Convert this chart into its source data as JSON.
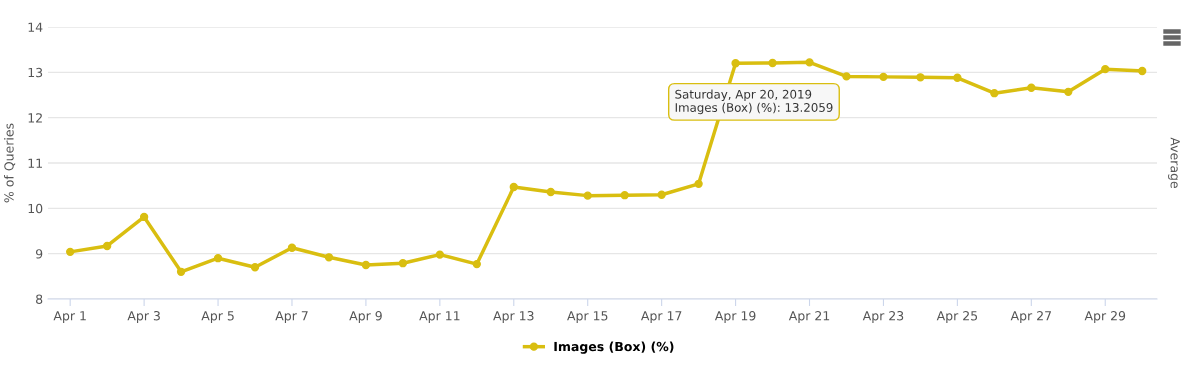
{
  "chart_data": {
    "type": "line",
    "ylabel": "% of Queries",
    "y2label": "Average",
    "categories": [
      "Apr 1",
      null,
      "Apr 3",
      null,
      "Apr 5",
      null,
      "Apr 7",
      null,
      "Apr 9",
      null,
      "Apr 11",
      null,
      "Apr 13",
      null,
      "Apr 15",
      null,
      "Apr 17",
      null,
      "Apr 19",
      null,
      "Apr 21",
      null,
      "Apr 23",
      null,
      "Apr 25",
      null,
      "Apr 27",
      null,
      "Apr 29",
      null
    ],
    "series": [
      {
        "name": "Images (Box) (%)",
        "color": "#d9be10",
        "values": [
          9.04,
          9.17,
          9.81,
          8.6,
          8.9,
          8.7,
          9.13,
          8.92,
          8.75,
          8.79,
          8.98,
          8.77,
          10.47,
          10.36,
          10.28,
          10.29,
          10.3,
          10.54,
          13.2,
          13.2059,
          13.22,
          12.91,
          12.9,
          12.89,
          12.88,
          12.54,
          12.66,
          12.57,
          13.07,
          13.03
        ]
      }
    ],
    "ylim": [
      8,
      14
    ],
    "yticks": [
      8,
      9,
      10,
      11,
      12,
      13,
      14
    ],
    "grid": "y",
    "legend": "bottom",
    "marker": "circle",
    "line_style": "solid",
    "annotations": [
      "Saturday, Apr 20, 2019\nImages (Box) (%): 13.2059"
    ]
  }
}
